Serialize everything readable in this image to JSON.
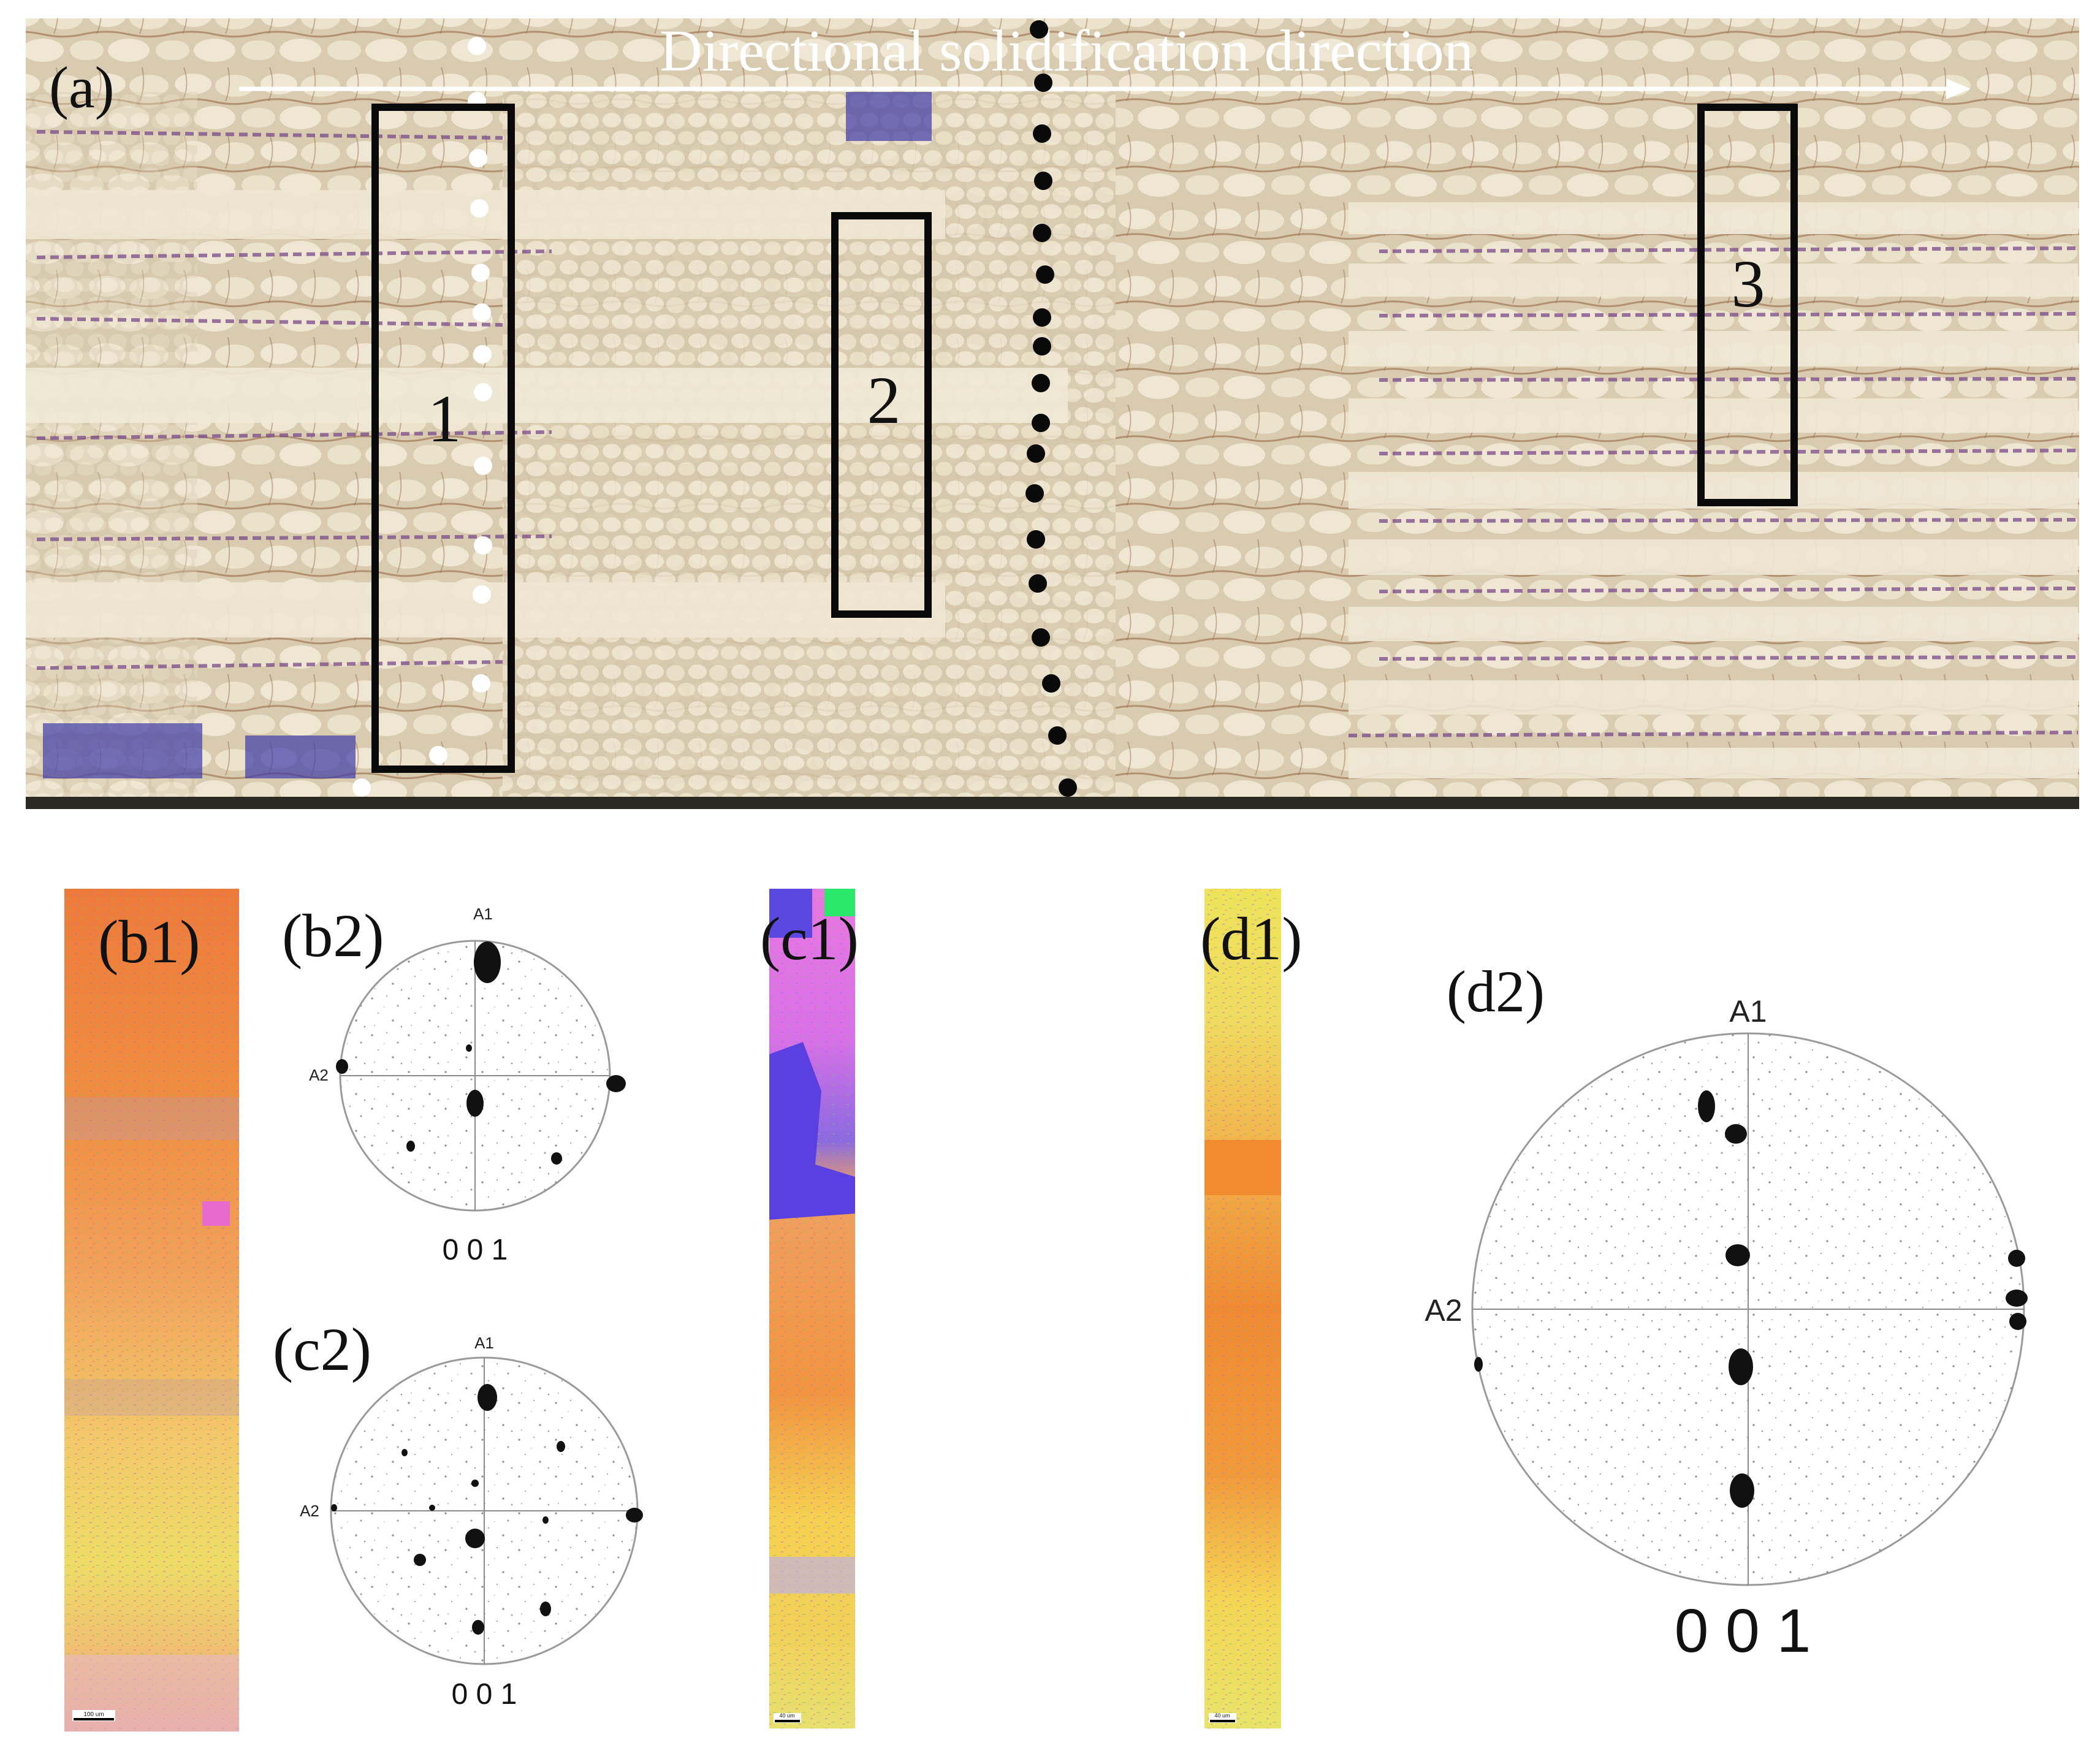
{
  "figure": {
    "panel_a": {
      "label": "(a)",
      "direction_text": "Directional solidification direction",
      "boxes": [
        {
          "label": "1"
        },
        {
          "label": "2"
        },
        {
          "label": "3"
        }
      ]
    },
    "panel_b1": {
      "label": "(b1)",
      "scale_bar": "100 um"
    },
    "panel_b2": {
      "label": "(b2)",
      "axis_top": "A1",
      "axis_left": "A2",
      "caption": "0 0 1"
    },
    "panel_c1": {
      "label": "(c1)",
      "scale_bar": "40 um"
    },
    "panel_c2": {
      "label": "(c2)",
      "axis_top": "A1",
      "axis_left": "A2",
      "caption": "0 0 1"
    },
    "panel_d1": {
      "label": "(d1)",
      "scale_bar": "40 um"
    },
    "panel_d2": {
      "label": "(d2)",
      "axis_top": "A1",
      "axis_left": "A2",
      "caption": "0 0 1"
    }
  },
  "colors": {
    "micrograph_base": "#d9cdb4",
    "dendrite_light": "#efe8d6",
    "interdendritic": "#8a5a3c",
    "phase_blue": "#4a3fa8",
    "ebsd_orange": "#f08a3c",
    "ebsd_yellow": "#f4e05a",
    "ebsd_pink": "#e87ad8",
    "ebsd_blue": "#5a48e0"
  }
}
